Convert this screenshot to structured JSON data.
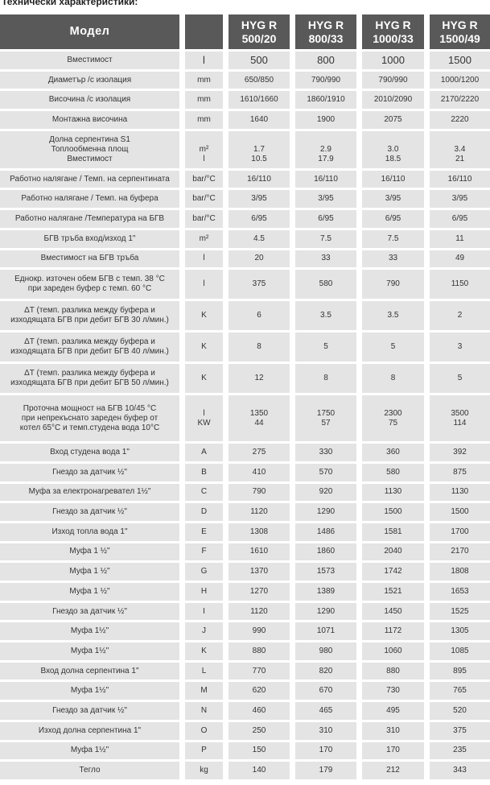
{
  "title": "Технически характеристики:",
  "header": {
    "model_label": "Модел",
    "unit_label": "",
    "models": [
      [
        "HYG R",
        "500/20"
      ],
      [
        "HYG R",
        "800/33"
      ],
      [
        "HYG R",
        "1000/33"
      ],
      [
        "HYG R",
        "1500/49"
      ]
    ]
  },
  "rows": [
    {
      "label": [
        "Вместимост"
      ],
      "unit": [
        "l"
      ],
      "values": [
        [
          "500"
        ],
        [
          "800"
        ],
        [
          "1000"
        ],
        [
          "1500"
        ]
      ],
      "size": "r1",
      "big": true
    },
    {
      "label": [
        "Диаметър  /с изолация"
      ],
      "unit": [
        "mm"
      ],
      "values": [
        [
          "650/850"
        ],
        [
          "790/990"
        ],
        [
          "790/990"
        ],
        [
          "1000/1200"
        ]
      ],
      "size": "r1"
    },
    {
      "label": [
        "Височина  /с изолация"
      ],
      "unit": [
        "mm"
      ],
      "values": [
        [
          "1610/1660"
        ],
        [
          "1860/1910"
        ],
        [
          "2010/2090"
        ],
        [
          "2170/2220"
        ]
      ],
      "size": "r1"
    },
    {
      "label": [
        "Монтажна височина"
      ],
      "unit": [
        "mm"
      ],
      "values": [
        [
          "1640"
        ],
        [
          "1900"
        ],
        [
          "2075"
        ],
        [
          "2220"
        ]
      ],
      "size": "r1"
    },
    {
      "label": [
        "Долна серпентина  S1",
        "Топлообменна площ",
        "Вместимост"
      ],
      "unit": [
        "",
        "m²",
        "l"
      ],
      "values": [
        [
          "",
          "1.7",
          "10.5"
        ],
        [
          "",
          "2.9",
          "17.9"
        ],
        [
          "",
          "3.0",
          "18.5"
        ],
        [
          "",
          "3.4",
          "21"
        ]
      ],
      "size": "r3"
    },
    {
      "label": [
        "Работно налягане / Темп. на серпентината"
      ],
      "unit": [
        "bar/°C"
      ],
      "values": [
        [
          "16/110"
        ],
        [
          "16/110"
        ],
        [
          "16/110"
        ],
        [
          "16/110"
        ]
      ],
      "size": "r1"
    },
    {
      "label": [
        "Работно налягане / Темп. на буфера"
      ],
      "unit": [
        "bar/°C"
      ],
      "values": [
        [
          "3/95"
        ],
        [
          "3/95"
        ],
        [
          "3/95"
        ],
        [
          "3/95"
        ]
      ],
      "size": "r1"
    },
    {
      "label": [
        "Работно налягане /Температура на БГВ"
      ],
      "unit": [
        "bar/°C"
      ],
      "values": [
        [
          "6/95"
        ],
        [
          "6/95"
        ],
        [
          "6/95"
        ],
        [
          "6/95"
        ]
      ],
      "size": "r1"
    },
    {
      "label": [
        "БГВ тръба вход/изход 1\""
      ],
      "unit": [
        "m²"
      ],
      "values": [
        [
          "4.5"
        ],
        [
          "7.5"
        ],
        [
          "7.5"
        ],
        [
          "11"
        ]
      ],
      "size": "r1"
    },
    {
      "label": [
        "Вместимост на БГВ тръба"
      ],
      "unit": [
        "l"
      ],
      "values": [
        [
          "20"
        ],
        [
          "33"
        ],
        [
          "33"
        ],
        [
          "49"
        ]
      ],
      "size": "r1"
    },
    {
      "label": [
        "Еднокр. източен обем БГВ с темп. 38 °C",
        "при зареден буфер с темп. 60 °C"
      ],
      "unit": [
        "l"
      ],
      "values": [
        [
          "375"
        ],
        [
          "580"
        ],
        [
          "790"
        ],
        [
          "1150"
        ]
      ],
      "size": "r2"
    },
    {
      "label": [
        "ΔT (темп. разлика между буфера и",
        "изходящата БГВ при дебит БГВ 30 л/мин.)"
      ],
      "unit": [
        "K"
      ],
      "values": [
        [
          "6"
        ],
        [
          "3.5"
        ],
        [
          "3.5"
        ],
        [
          "2"
        ]
      ],
      "size": "r2"
    },
    {
      "label": [
        "ΔT (темп. разлика между буфера и",
        "изходящата БГВ при дебит БГВ 40 л/мин.)"
      ],
      "unit": [
        "K"
      ],
      "values": [
        [
          "8"
        ],
        [
          "5"
        ],
        [
          "5"
        ],
        [
          "3"
        ]
      ],
      "size": "r2"
    },
    {
      "label": [
        "ΔT (темп. разлика между буфера и",
        "изходящата БГВ при дебит БГВ 50 л/мин.)"
      ],
      "unit": [
        "K"
      ],
      "values": [
        [
          "12"
        ],
        [
          "8"
        ],
        [
          "8"
        ],
        [
          "5"
        ]
      ],
      "size": "r2"
    },
    {
      "label": [
        "Проточна мощност на БГВ  10/45 °C",
        "при непрекъснато зареден буфер от",
        "котел 65°C и темп.студена вода 10°C"
      ],
      "unit": [
        "l",
        "KW"
      ],
      "values": [
        [
          "1350",
          "44"
        ],
        [
          "1750",
          "57"
        ],
        [
          "2300",
          "75"
        ],
        [
          "3500",
          "114"
        ]
      ],
      "size": "r3b"
    },
    {
      "label": [
        "Вход студена вода 1\""
      ],
      "unit": [
        "A"
      ],
      "values": [
        [
          "275"
        ],
        [
          "330"
        ],
        [
          "360"
        ],
        [
          "392"
        ]
      ],
      "size": "r1"
    },
    {
      "label": [
        "Гнездо за датчик  ½\""
      ],
      "unit": [
        "B"
      ],
      "values": [
        [
          "410"
        ],
        [
          "570"
        ],
        [
          "580"
        ],
        [
          "875"
        ]
      ],
      "size": "r1"
    },
    {
      "label": [
        "Муфа за електронагревател 1½\""
      ],
      "unit": [
        "C"
      ],
      "values": [
        [
          "790"
        ],
        [
          "920"
        ],
        [
          "1130"
        ],
        [
          "1130"
        ]
      ],
      "size": "r1"
    },
    {
      "label": [
        "Гнездо за датчик  ½\""
      ],
      "unit": [
        "D"
      ],
      "values": [
        [
          "1120"
        ],
        [
          "1290"
        ],
        [
          "1500"
        ],
        [
          "1500"
        ]
      ],
      "size": "r1"
    },
    {
      "label": [
        "Изход топла вода 1\""
      ],
      "unit": [
        "E"
      ],
      "values": [
        [
          "1308"
        ],
        [
          "1486"
        ],
        [
          "1581"
        ],
        [
          "1700"
        ]
      ],
      "size": "r1"
    },
    {
      "label": [
        "Муфа 1 ½\""
      ],
      "unit": [
        "F"
      ],
      "values": [
        [
          "1610"
        ],
        [
          "1860"
        ],
        [
          "2040"
        ],
        [
          "2170"
        ]
      ],
      "size": "r1"
    },
    {
      "label": [
        "Муфа 1 ½\""
      ],
      "unit": [
        "G"
      ],
      "values": [
        [
          "1370"
        ],
        [
          "1573"
        ],
        [
          "1742"
        ],
        [
          "1808"
        ]
      ],
      "size": "r1"
    },
    {
      "label": [
        "Муфа 1 ½\""
      ],
      "unit": [
        "H"
      ],
      "values": [
        [
          "1270"
        ],
        [
          "1389"
        ],
        [
          "1521"
        ],
        [
          "1653"
        ]
      ],
      "size": "r1"
    },
    {
      "label": [
        "Гнездо за датчик ½\""
      ],
      "unit": [
        "I"
      ],
      "values": [
        [
          "1120"
        ],
        [
          "1290"
        ],
        [
          "1450"
        ],
        [
          "1525"
        ]
      ],
      "size": "r1"
    },
    {
      "label": [
        "Муфа 1½\""
      ],
      "unit": [
        "J"
      ],
      "values": [
        [
          "990"
        ],
        [
          "1071"
        ],
        [
          "1172"
        ],
        [
          "1305"
        ]
      ],
      "size": "r1"
    },
    {
      "label": [
        "Муфа 1½\""
      ],
      "unit": [
        "K"
      ],
      "values": [
        [
          "880"
        ],
        [
          "980"
        ],
        [
          "1060"
        ],
        [
          "1085"
        ]
      ],
      "size": "r1"
    },
    {
      "label": [
        "Вход долна серпентина 1\""
      ],
      "unit": [
        "L"
      ],
      "values": [
        [
          "770"
        ],
        [
          "820"
        ],
        [
          "880"
        ],
        [
          "895"
        ]
      ],
      "size": "r1"
    },
    {
      "label": [
        "Муфа 1½\""
      ],
      "unit": [
        "M"
      ],
      "values": [
        [
          "620"
        ],
        [
          "670"
        ],
        [
          "730"
        ],
        [
          "765"
        ]
      ],
      "size": "r1"
    },
    {
      "label": [
        "Гнездо за датчик ½\""
      ],
      "unit": [
        "N"
      ],
      "values": [
        [
          "460"
        ],
        [
          "465"
        ],
        [
          "495"
        ],
        [
          "520"
        ]
      ],
      "size": "r1"
    },
    {
      "label": [
        "Изход долна серпентина 1\""
      ],
      "unit": [
        "O"
      ],
      "values": [
        [
          "250"
        ],
        [
          "310"
        ],
        [
          "310"
        ],
        [
          "375"
        ]
      ],
      "size": "r1"
    },
    {
      "label": [
        "Муфа 1½\""
      ],
      "unit": [
        "P"
      ],
      "values": [
        [
          "150"
        ],
        [
          "170"
        ],
        [
          "170"
        ],
        [
          "235"
        ]
      ],
      "size": "r1"
    },
    {
      "label": [
        "Тегло"
      ],
      "unit": [
        "kg"
      ],
      "values": [
        [
          "140"
        ],
        [
          "179"
        ],
        [
          "212"
        ],
        [
          "343"
        ]
      ],
      "size": "r1"
    }
  ],
  "colors": {
    "header_bg": "#595959",
    "cell_bg": "#e4e4e4",
    "text": "#333333"
  }
}
